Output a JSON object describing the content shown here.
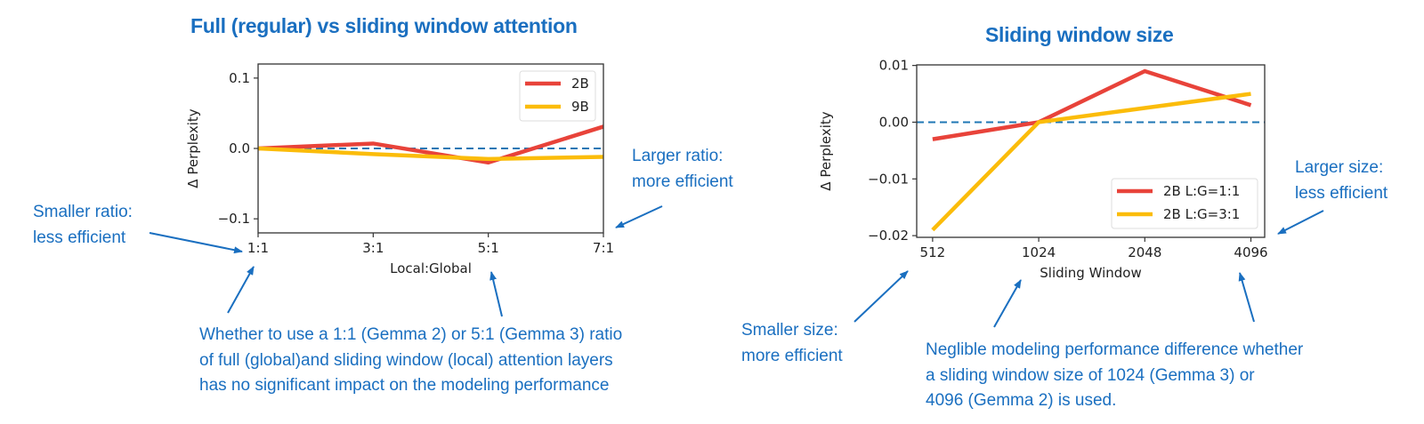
{
  "colors": {
    "series1": "#e8433a",
    "series2": "#fbbc0a",
    "zero_line": "#1f77b4",
    "annotation": "#1a6fc0"
  },
  "chart_data": [
    {
      "type": "line",
      "title": "Full (regular) vs sliding window attention",
      "xlabel": "Local:Global",
      "ylabel": "Δ Perplexity",
      "categories": [
        "1:1",
        "3:1",
        "5:1",
        "7:1"
      ],
      "x": [
        1,
        3,
        5,
        7
      ],
      "xlim": [
        1,
        7
      ],
      "ylim": [
        -0.12,
        0.12
      ],
      "yticks": [
        0.1,
        0.0,
        -0.1
      ],
      "ytick_labels": [
        "0.1",
        "0.0",
        "−0.1"
      ],
      "reference_line": 0,
      "legend": "top-right",
      "grid": false,
      "series": [
        {
          "name": "2B",
          "values": [
            0,
            0.007,
            -0.02,
            0.031
          ]
        },
        {
          "name": "9B",
          "values": [
            0,
            -0.008,
            -0.015,
            -0.012
          ]
        }
      ]
    },
    {
      "type": "line",
      "title": "Sliding window size",
      "xlabel": "Sliding Window",
      "ylabel": "Δ Perplexity",
      "categories": [
        "512",
        "1024",
        "2048",
        "4096"
      ],
      "ylim": [
        -0.0203,
        0.0101
      ],
      "yticks": [
        0.01,
        0.0,
        -0.01,
        -0.02
      ],
      "ytick_labels": [
        "0.01",
        "0.00",
        "−0.01",
        "−0.02"
      ],
      "reference_line": 0,
      "legend": "lower-right",
      "grid": false,
      "series": [
        {
          "name": "2B L:G=1:1",
          "values": [
            -0.003,
            0,
            0.009,
            0.003
          ]
        },
        {
          "name": "2B L:G=3:1",
          "values": [
            -0.019,
            0,
            0.0025,
            0.005
          ]
        }
      ]
    }
  ],
  "annotations": {
    "left_smaller": [
      "Smaller ratio:",
      "less efficient"
    ],
    "left_larger": [
      "Larger ratio:",
      "more efficient"
    ],
    "left_summary": [
      "Whether to use a 1:1 (Gemma 2) or 5:1 (Gemma 3) ratio",
      "of full (global)and sliding window (local) attention layers",
      "has no significant  impact on the modeling performance"
    ],
    "right_smaller": [
      "Smaller size:",
      "more efficient"
    ],
    "right_larger": [
      "Larger size:",
      "less efficient"
    ],
    "right_summary": [
      "Neglible modeling performance difference whether",
      "a sliding window size of 1024 (Gemma 3) or",
      "4096 (Gemma 2) is used."
    ]
  }
}
